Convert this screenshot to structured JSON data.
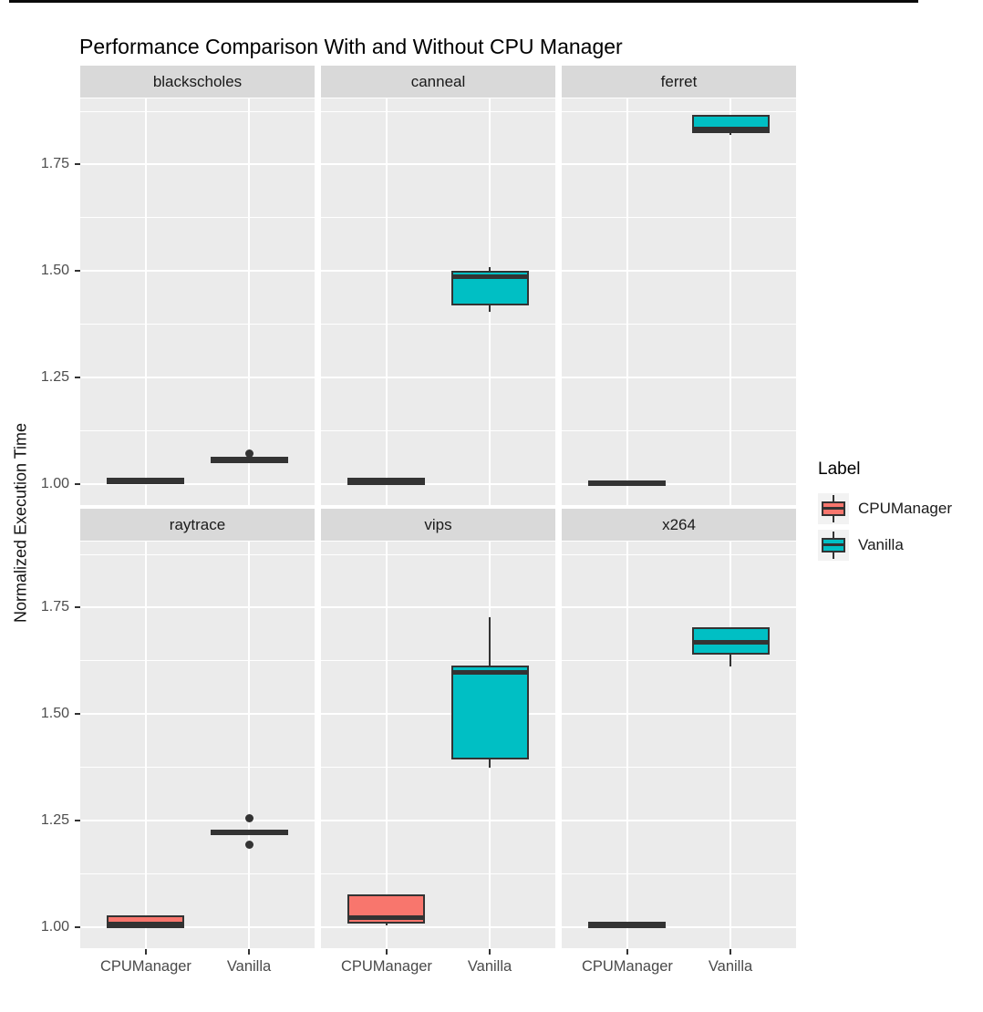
{
  "chart": {
    "title": "Performance Comparison With and Without CPU Manager",
    "ylabel": "Normalized Execution Time",
    "legend": {
      "title": "Label",
      "items": [
        {
          "label": "CPUManager",
          "color": "#F8766D"
        },
        {
          "label": "Vanilla",
          "color": "#00BFC4"
        }
      ]
    }
  },
  "chart_data": {
    "type": "boxplot",
    "title": "Performance Comparison With and Without CPU Manager",
    "xlabel": "",
    "ylabel": "Normalized Execution Time",
    "categories": [
      "CPUManager",
      "Vanilla"
    ],
    "yticks": [
      1.0,
      1.25,
      1.5,
      1.75
    ],
    "ytick_labels": [
      "1.00",
      "1.25",
      "1.50",
      "1.75"
    ],
    "minor_ticks": [
      1.125,
      1.375,
      1.625,
      1.875
    ],
    "ylim": [
      0.95,
      1.905
    ],
    "grid": true,
    "legend_position": "right",
    "colors": {
      "CPUManager": "#F8766D",
      "Vanilla": "#00BFC4"
    },
    "panel_bg": "#EBEBEB",
    "strip_bg": "#D9D9D9",
    "box_border": "#333333",
    "facets": [
      {
        "name": "blackscholes",
        "boxes": [
          {
            "group": "CPUManager",
            "whisker_low": 1.002,
            "q1": 1.003,
            "median": 1.006,
            "q3": 1.009,
            "whisker_high": 1.01,
            "outliers": []
          },
          {
            "group": "Vanilla",
            "whisker_low": 1.051,
            "q1": 1.053,
            "median": 1.056,
            "q3": 1.059,
            "whisker_high": 1.061,
            "outliers": [
              1.072
            ]
          }
        ]
      },
      {
        "name": "canneal",
        "boxes": [
          {
            "group": "CPUManager",
            "whisker_low": 0.999,
            "q1": 1.001,
            "median": 1.005,
            "q3": 1.009,
            "whisker_high": 1.011,
            "outliers": []
          },
          {
            "group": "Vanilla",
            "whisker_low": 1.403,
            "q1": 1.424,
            "median": 1.486,
            "q3": 1.497,
            "whisker_high": 1.508,
            "outliers": []
          }
        ]
      },
      {
        "name": "ferret",
        "boxes": [
          {
            "group": "CPUManager",
            "whisker_low": 0.998,
            "q1": 1.0,
            "median": 1.002,
            "q3": 1.004,
            "whisker_high": 1.005,
            "outliers": []
          },
          {
            "group": "Vanilla",
            "whisker_low": 1.819,
            "q1": 1.827,
            "median": 1.833,
            "q3": 1.862,
            "whisker_high": 1.864,
            "outliers": []
          }
        ]
      },
      {
        "name": "raytrace",
        "boxes": [
          {
            "group": "CPUManager",
            "whisker_low": 1.0,
            "q1": 1.001,
            "median": 1.006,
            "q3": 1.023,
            "whisker_high": 1.025,
            "outliers": []
          },
          {
            "group": "Vanilla",
            "whisker_low": 1.219,
            "q1": 1.22,
            "median": 1.222,
            "q3": 1.224,
            "whisker_high": 1.226,
            "outliers": [
              1.256,
              1.194
            ]
          }
        ]
      },
      {
        "name": "vips",
        "boxes": [
          {
            "group": "CPUManager",
            "whisker_low": 1.003,
            "q1": 1.013,
            "median": 1.021,
            "q3": 1.073,
            "whisker_high": 1.075,
            "outliers": []
          },
          {
            "group": "Vanilla",
            "whisker_low": 1.374,
            "q1": 1.398,
            "median": 1.597,
            "q3": 1.609,
            "whisker_high": 1.727,
            "outliers": []
          }
        ]
      },
      {
        "name": "x264",
        "boxes": [
          {
            "group": "CPUManager",
            "whisker_low": 1.001,
            "q1": 1.002,
            "median": 1.005,
            "q3": 1.008,
            "whisker_high": 1.01,
            "outliers": []
          },
          {
            "group": "Vanilla",
            "whisker_low": 1.612,
            "q1": 1.644,
            "median": 1.669,
            "q3": 1.699,
            "whisker_high": 1.701,
            "outliers": []
          }
        ]
      }
    ]
  }
}
